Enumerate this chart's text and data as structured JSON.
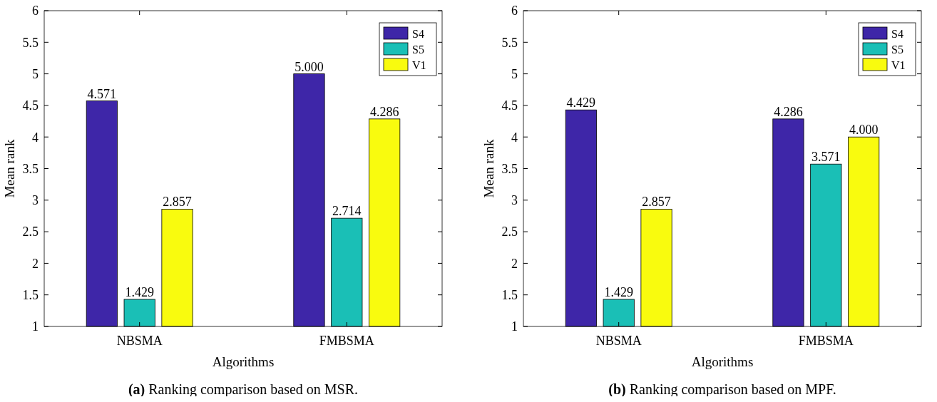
{
  "chart_data": [
    {
      "type": "bar",
      "title": "(a) Ranking comparison based on MSR.",
      "xlabel": "Algorithms",
      "ylabel": "Mean rank",
      "categories": [
        "NBSMA",
        "FMBSMA"
      ],
      "ylim": [
        1,
        6
      ],
      "yticks": [
        1,
        1.5,
        2,
        2.5,
        3,
        3.5,
        4,
        4.5,
        5,
        5.5,
        6
      ],
      "legend": "top right",
      "grid": false,
      "series": [
        {
          "name": "S4",
          "color": "#3e26a8",
          "values": [
            4.571,
            5.0
          ],
          "value_labels": [
            "4.571",
            "5.000"
          ]
        },
        {
          "name": "S5",
          "color": "#1abfb6",
          "values": [
            1.429,
            2.714
          ],
          "value_labels": [
            "1.429",
            "2.714"
          ]
        },
        {
          "name": "V1",
          "color": "#f9fb0e",
          "values": [
            2.857,
            4.286
          ],
          "value_labels": [
            "2.857",
            "4.286"
          ]
        }
      ]
    },
    {
      "type": "bar",
      "title": "(b) Ranking comparison based on MPF.",
      "xlabel": "Algorithms",
      "ylabel": "Mean rank",
      "categories": [
        "NBSMA",
        "FMBSMA"
      ],
      "ylim": [
        1,
        6
      ],
      "yticks": [
        1,
        1.5,
        2,
        2.5,
        3,
        3.5,
        4,
        4.5,
        5,
        5.5,
        6
      ],
      "legend": "top right",
      "grid": false,
      "series": [
        {
          "name": "S4",
          "color": "#3e26a8",
          "values": [
            4.429,
            4.286
          ],
          "value_labels": [
            "4.429",
            "4.286"
          ]
        },
        {
          "name": "S5",
          "color": "#1abfb6",
          "values": [
            1.429,
            3.571
          ],
          "value_labels": [
            "1.429",
            "3.571"
          ]
        },
        {
          "name": "V1",
          "color": "#f9fb0e",
          "values": [
            2.857,
            4.0
          ],
          "value_labels": [
            "2.857",
            "4.000"
          ]
        }
      ]
    }
  ]
}
